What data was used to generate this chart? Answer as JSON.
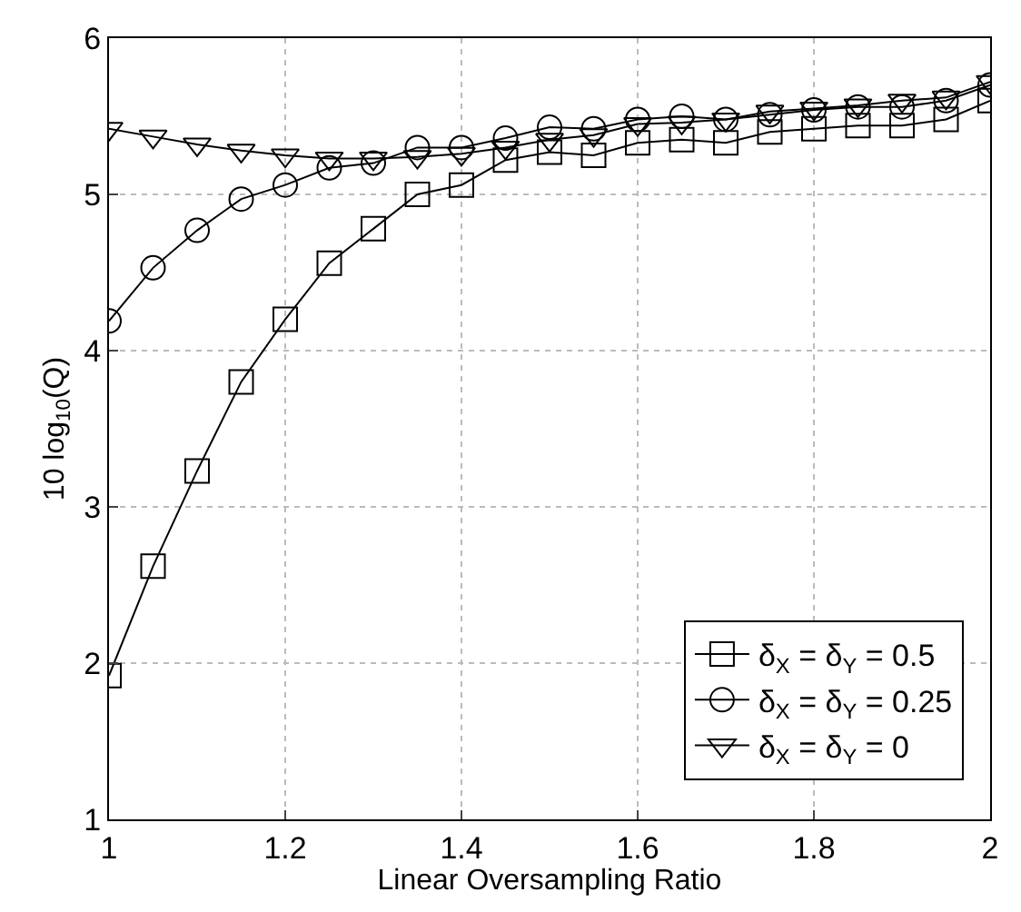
{
  "chart_data": {
    "type": "line",
    "xlabel": "Linear Oversampling Ratio",
    "ylabel": "10 log$_{10}$(Q)",
    "x": [
      1,
      1.05,
      1.1,
      1.15,
      1.2,
      1.25,
      1.3,
      1.35,
      1.4,
      1.45,
      1.5,
      1.55,
      1.6,
      1.65,
      1.7,
      1.75,
      1.8,
      1.85,
      1.9,
      1.95,
      2
    ],
    "series": [
      {
        "name": "δ$_{X}$ = δ$_{Y}$ = 0.5",
        "color": "#000000",
        "marker": "square",
        "values": [
          1.92,
          2.62,
          3.23,
          3.8,
          4.2,
          4.56,
          4.78,
          5.0,
          5.06,
          5.22,
          5.27,
          5.25,
          5.33,
          5.35,
          5.33,
          5.4,
          5.42,
          5.44,
          5.44,
          5.48,
          5.6
        ]
      },
      {
        "name": "δ$_{X}$ = δ$_{Y}$ = 0.25",
        "color": "#000000",
        "marker": "circle",
        "values": [
          4.19,
          4.53,
          4.77,
          4.97,
          5.06,
          5.17,
          5.2,
          5.3,
          5.3,
          5.36,
          5.43,
          5.42,
          5.48,
          5.5,
          5.48,
          5.51,
          5.54,
          5.56,
          5.56,
          5.6,
          5.7
        ]
      },
      {
        "name": "δ$_{X}$ = δ$_{Y}$ = 0",
        "color": "#000000",
        "marker": "triangle",
        "values": [
          5.42,
          5.37,
          5.32,
          5.28,
          5.25,
          5.23,
          5.23,
          5.24,
          5.26,
          5.3,
          5.35,
          5.38,
          5.45,
          5.46,
          5.48,
          5.53,
          5.55,
          5.57,
          5.6,
          5.62,
          5.72
        ]
      }
    ],
    "xlim": [
      1,
      2
    ],
    "xticks": [
      1,
      1.2,
      1.4,
      1.6,
      1.8,
      2
    ],
    "ylim": [
      1,
      6
    ],
    "yticks": [
      1,
      2,
      3,
      4,
      5,
      6
    ],
    "grid": true,
    "legend": "bottom right",
    "line_style": "solid"
  }
}
